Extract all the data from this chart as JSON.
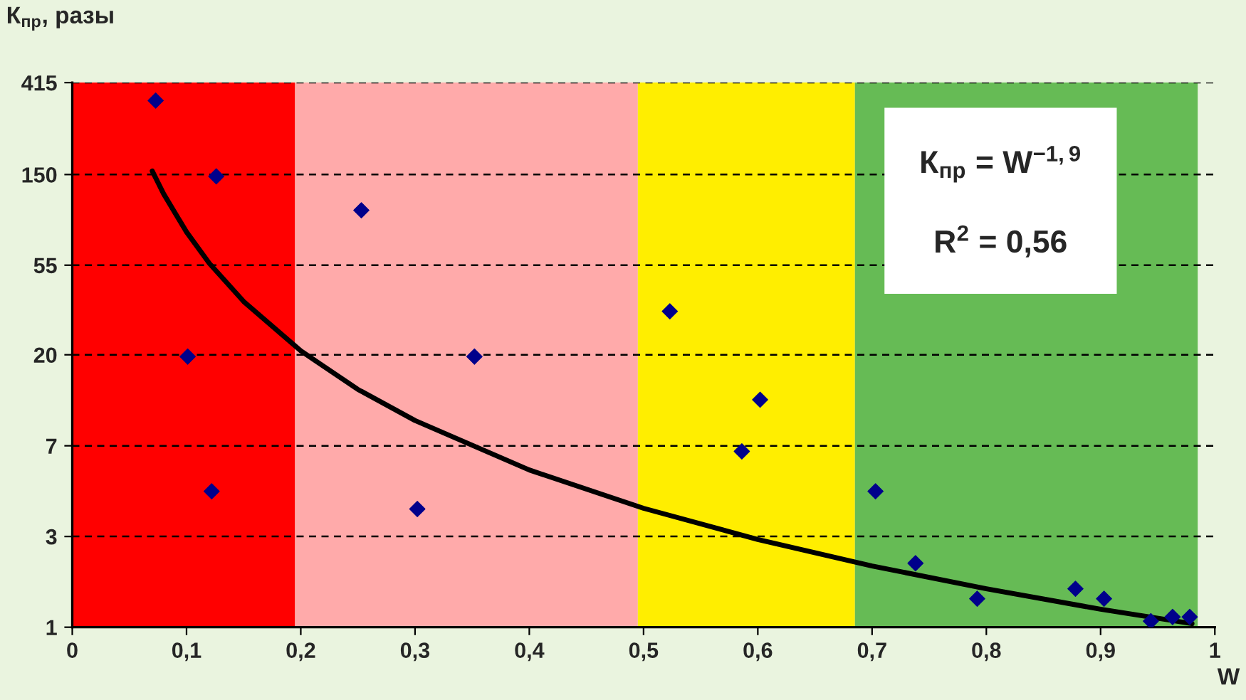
{
  "chart_data": {
    "type": "scatter",
    "ylabel": "К$_{пр}$, разы",
    "xlabel": "W",
    "log": "y",
    "xlim": [
      0,
      1
    ],
    "ylim": [
      1,
      415
    ],
    "xticks": [
      0,
      {
        "value": 0.1,
        "label": "0,1"
      },
      {
        "value": 0.2,
        "label": "0,2"
      },
      {
        "value": 0.3,
        "label": "0,3"
      },
      {
        "value": 0.4,
        "label": "0,4"
      },
      {
        "value": 0.5,
        "label": "0,5"
      },
      {
        "value": 0.6,
        "label": "0,6"
      },
      {
        "value": 0.7,
        "label": "0,7"
      },
      {
        "value": 0.8,
        "label": "0,8"
      },
      {
        "value": 0.9,
        "label": "0,9"
      },
      1
    ],
    "yticks": [
      1,
      {
        "value": 2.73,
        "label": "3"
      },
      {
        "value": 7.45,
        "label": "7"
      },
      {
        "value": 20.4,
        "label": "20"
      },
      55,
      150,
      415
    ],
    "grid": "y",
    "bands": [
      {
        "axis": "x",
        "from": 0,
        "to": 0.195,
        "color": "#ff0000"
      },
      {
        "axis": "x",
        "from": 0.195,
        "to": 0.495,
        "color": "#ffaaaa"
      },
      {
        "axis": "x",
        "from": 0.495,
        "to": 0.685,
        "color": "#ffee00"
      },
      {
        "axis": "x",
        "from": 0.685,
        "to": 0.985,
        "color": "#66bb55"
      }
    ],
    "annotations": [
      "К$_{пр}$ = W$^{−1,9}$",
      "R$^{2}$ = 0,56"
    ],
    "series": [
      {
        "marker": "diamond",
        "color": "#00008b",
        "x": [
          0.073,
          0.126,
          0.101,
          0.122,
          0.253,
          0.302,
          0.352,
          0.523,
          0.602,
          0.586,
          0.703,
          0.738,
          0.792,
          0.878,
          0.903,
          0.944,
          0.963,
          0.978
        ],
        "values": [
          340,
          147,
          20,
          4.5,
          101,
          3.7,
          20,
          33,
          12.4,
          7,
          4.5,
          2.03,
          1.37,
          1.53,
          1.37,
          1.07,
          1.12,
          1.12
        ]
      },
      {
        "type": "line",
        "marker": "none",
        "color": "#000000",
        "x": [
          0.07,
          0.08,
          0.1,
          0.12,
          0.15,
          0.2,
          0.25,
          0.3,
          0.4,
          0.5,
          0.6,
          0.7,
          0.8,
          0.9,
          0.98
        ],
        "values": [
          156,
          121,
          79.4,
          56.1,
          36.8,
          21.3,
          13.9,
          9.85,
          5.7,
          3.73,
          2.64,
          1.97,
          1.53,
          1.22,
          1.04
        ]
      }
    ]
  }
}
